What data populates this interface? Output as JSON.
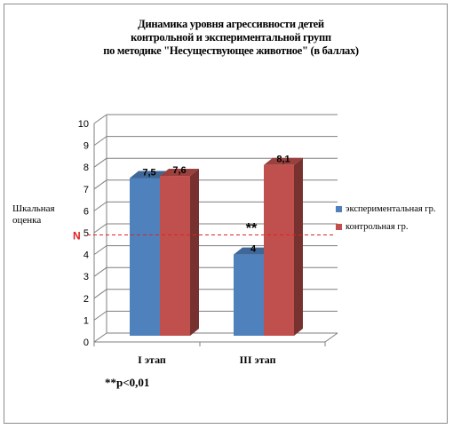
{
  "chart_data": {
    "type": "bar",
    "title_lines": [
      "Динамика уровня агрессивности детей",
      "контрольной и экспериментальной групп",
      "по методике \"Несуществующее животное\" (в баллах)"
    ],
    "ylabel": "Шкальная оценка",
    "categories": [
      "I этап",
      "III этап"
    ],
    "series": [
      {
        "name": "экспериментальная гр.",
        "values": [
          7.5,
          4
        ],
        "labels": [
          "7,5",
          "4"
        ],
        "color": "#4f81bd"
      },
      {
        "name": "контрольная гр.",
        "values": [
          7.6,
          8.1
        ],
        "labels": [
          "7,6",
          "8,1"
        ],
        "color": "#c0504d"
      }
    ],
    "ylim": [
      0,
      10
    ],
    "yticks": [
      "0",
      "1",
      "2",
      "3",
      "4",
      "5",
      "6",
      "7",
      "8",
      "9",
      "10"
    ],
    "grid": true,
    "legend_position": "right",
    "norm_line": {
      "label": "N",
      "value": 4.9,
      "color": "#e02020"
    },
    "annotation": "**",
    "note": "**p<0,01"
  }
}
